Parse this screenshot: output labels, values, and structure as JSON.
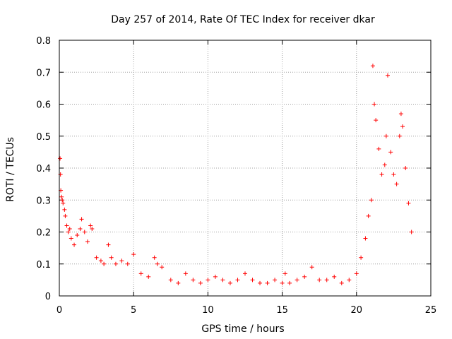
{
  "chart_data": {
    "type": "scatter",
    "title": "Day 257 of 2014, Rate Of TEC Index for receiver dkar",
    "xlabel": "GPS time / hours",
    "ylabel": "ROTI / TECUs",
    "xlim": [
      0,
      25
    ],
    "ylim": [
      0,
      0.8
    ],
    "x_ticks": [
      0,
      5,
      10,
      15,
      20,
      25
    ],
    "y_ticks": [
      0,
      0.1,
      0.2,
      0.3,
      0.4,
      0.5,
      0.6,
      0.7,
      0.8
    ],
    "x_tick_labels": [
      "0",
      "5",
      "10",
      "15",
      "20",
      "25"
    ],
    "y_tick_labels": [
      "0",
      "0.1",
      "0.2",
      "0.3",
      "0.4",
      "0.5",
      "0.6",
      "0.7",
      "0.8"
    ],
    "grid": true,
    "marker": "+",
    "series_color": "#ff0000",
    "series": [
      {
        "name": "ROTI",
        "points": [
          [
            0.05,
            0.43
          ],
          [
            0.08,
            0.38
          ],
          [
            0.1,
            0.33
          ],
          [
            0.15,
            0.31
          ],
          [
            0.2,
            0.3
          ],
          [
            0.25,
            0.29
          ],
          [
            0.35,
            0.27
          ],
          [
            0.4,
            0.25
          ],
          [
            0.5,
            0.22
          ],
          [
            0.6,
            0.2
          ],
          [
            0.7,
            0.21
          ],
          [
            0.8,
            0.18
          ],
          [
            1.0,
            0.16
          ],
          [
            1.2,
            0.19
          ],
          [
            1.4,
            0.21
          ],
          [
            1.5,
            0.24
          ],
          [
            1.7,
            0.2
          ],
          [
            1.9,
            0.17
          ],
          [
            2.1,
            0.22
          ],
          [
            2.2,
            0.21
          ],
          [
            2.5,
            0.12
          ],
          [
            2.8,
            0.11
          ],
          [
            3.0,
            0.1
          ],
          [
            3.3,
            0.16
          ],
          [
            3.5,
            0.12
          ],
          [
            3.8,
            0.1
          ],
          [
            4.2,
            0.11
          ],
          [
            4.6,
            0.1
          ],
          [
            5.0,
            0.13
          ],
          [
            5.5,
            0.07
          ],
          [
            6.0,
            0.06
          ],
          [
            6.4,
            0.12
          ],
          [
            6.6,
            0.1
          ],
          [
            6.9,
            0.09
          ],
          [
            7.5,
            0.05
          ],
          [
            8.0,
            0.04
          ],
          [
            8.5,
            0.07
          ],
          [
            9.0,
            0.05
          ],
          [
            9.5,
            0.04
          ],
          [
            10.0,
            0.05
          ],
          [
            10.5,
            0.06
          ],
          [
            11.0,
            0.05
          ],
          [
            11.5,
            0.04
          ],
          [
            12.0,
            0.05
          ],
          [
            12.5,
            0.07
          ],
          [
            13.0,
            0.05
          ],
          [
            13.5,
            0.04
          ],
          [
            14.0,
            0.04
          ],
          [
            14.5,
            0.05
          ],
          [
            15.0,
            0.04
          ],
          [
            15.2,
            0.07
          ],
          [
            15.5,
            0.04
          ],
          [
            16.0,
            0.05
          ],
          [
            16.5,
            0.06
          ],
          [
            17.0,
            0.09
          ],
          [
            17.5,
            0.05
          ],
          [
            18.0,
            0.05
          ],
          [
            18.5,
            0.06
          ],
          [
            19.0,
            0.04
          ],
          [
            19.5,
            0.05
          ],
          [
            20.0,
            0.07
          ],
          [
            20.3,
            0.12
          ],
          [
            20.6,
            0.18
          ],
          [
            20.8,
            0.25
          ],
          [
            21.0,
            0.3
          ],
          [
            21.1,
            0.72
          ],
          [
            21.2,
            0.6
          ],
          [
            21.3,
            0.55
          ],
          [
            21.5,
            0.46
          ],
          [
            21.7,
            0.38
          ],
          [
            21.9,
            0.41
          ],
          [
            22.0,
            0.5
          ],
          [
            22.1,
            0.69
          ],
          [
            22.3,
            0.45
          ],
          [
            22.5,
            0.38
          ],
          [
            22.7,
            0.35
          ],
          [
            22.9,
            0.5
          ],
          [
            23.0,
            0.57
          ],
          [
            23.1,
            0.53
          ],
          [
            23.3,
            0.4
          ],
          [
            23.5,
            0.29
          ],
          [
            23.7,
            0.2
          ]
        ]
      }
    ]
  }
}
